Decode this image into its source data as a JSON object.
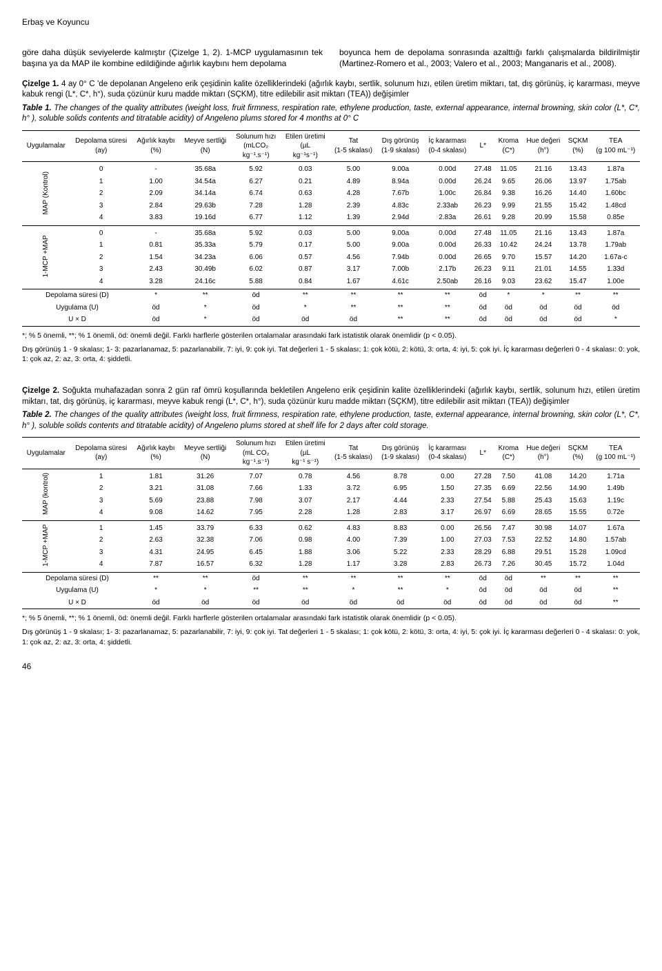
{
  "header_author": "Erbaş ve Koyuncu",
  "page_number": "46",
  "body": {
    "col_left": "göre daha düşük seviyelerde kalmıştır (Çizelge 1, 2). 1-MCP uygulamasının tek başına ya da MAP ile kombine edildiğinde ağırlık kaybını hem depolama",
    "col_right": "boyunca hem de depolama sonrasında azalttığı farklı çalışmalarda bildirilmiştir (Martinez-Romero et al., 2003; Valero et al., 2003; Manganaris et al., 2008)."
  },
  "table1": {
    "caption_tr_label": "Çizelge 1.",
    "caption_tr": " 4 ay 0° C 'de depolanan Angeleno erik çeşidinin kalite özelliklerindeki (ağırlık kaybı, sertlik, solunum hızı, etilen üretim miktarı, tat, dış görünüş, iç kararması, meyve kabuk rengi (L*, C*, h°), suda çözünür kuru madde miktarı (SÇKM), titre edilebilir asit miktarı (TEA)) değişimler",
    "caption_en_label": "Table 1.",
    "caption_en": " The changes of the quality attributes (weight loss, fruit firmness, respiration rate, ethylene production, taste, external appearance, internal browning, skin color (L*, C*, h° ), soluble solids contents and titratable acidity) of Angeleno plums stored for 4 months at 0° C",
    "columns": [
      "Uygulamalar",
      "Depolama süresi (ay)",
      "Ağırlık kaybı (%)",
      "Meyve sertliği (N)",
      "Solunum hızı (mLCO₂ kg⁻¹.s⁻¹)",
      "Etilen üretimi (µL kg⁻¹s⁻¹)",
      "Tat (1-5 skalası)",
      "Dış görünüş (1-9 skalası)",
      "İç kararması (0-4 skalası)",
      "L*",
      "Kroma (C*)",
      "Hue değeri (h°)",
      "SÇKM (%)",
      "TEA (g 100 mL⁻¹)"
    ],
    "groups": [
      {
        "name": "MAP (Kontrol)",
        "rows": [
          [
            "0",
            "-",
            "35.68a",
            "5.92",
            "0.03",
            "5.00",
            "9.00a",
            "0.00d",
            "27.48",
            "11.05",
            "21.16",
            "13.43",
            "1.87a"
          ],
          [
            "1",
            "1.00",
            "34.54a",
            "6.27",
            "0.21",
            "4.89",
            "8.94a",
            "0.00d",
            "26.24",
            "9.65",
            "26.06",
            "13.97",
            "1.75ab"
          ],
          [
            "2",
            "2.09",
            "34.14a",
            "6.74",
            "0.63",
            "4.28",
            "7.67b",
            "1.00c",
            "26.84",
            "9.38",
            "16.26",
            "14.40",
            "1.60bc"
          ],
          [
            "3",
            "2.84",
            "29.63b",
            "7.28",
            "1.28",
            "2.39",
            "4.83c",
            "2.33ab",
            "26.23",
            "9.99",
            "21.55",
            "15.42",
            "1.48cd"
          ],
          [
            "4",
            "3.83",
            "19.16d",
            "6.77",
            "1.12",
            "1.39",
            "2.94d",
            "2.83a",
            "26.61",
            "9.28",
            "20.99",
            "15.58",
            "0.85e"
          ]
        ]
      },
      {
        "name": "1-MCP +MAP",
        "rows": [
          [
            "0",
            "-",
            "35.68a",
            "5.92",
            "0.03",
            "5.00",
            "9.00a",
            "0.00d",
            "27.48",
            "11.05",
            "21.16",
            "13.43",
            "1.87a"
          ],
          [
            "1",
            "0.81",
            "35.33a",
            "5.79",
            "0.17",
            "5.00",
            "9.00a",
            "0.00d",
            "26.33",
            "10.42",
            "24.24",
            "13.78",
            "1.79ab"
          ],
          [
            "2",
            "1.54",
            "34.23a",
            "6.06",
            "0.57",
            "4.56",
            "7.94b",
            "0.00d",
            "26.65",
            "9.70",
            "15.57",
            "14.20",
            "1.67a-c"
          ],
          [
            "3",
            "2.43",
            "30.49b",
            "6.02",
            "0.87",
            "3.17",
            "7.00b",
            "2.17b",
            "26.23",
            "9.11",
            "21.01",
            "14.55",
            "1.33d"
          ],
          [
            "4",
            "3.28",
            "24.16c",
            "5.88",
            "0.84",
            "1.67",
            "4.61c",
            "2.50ab",
            "26.16",
            "9.03",
            "23.62",
            "15.47",
            "1.00e"
          ]
        ]
      }
    ],
    "stats": [
      [
        "Depolama süresi (D)",
        "*",
        "**",
        "öd",
        "**",
        "**",
        "**",
        "**",
        "öd",
        "*",
        "*",
        "**",
        "**"
      ],
      [
        "Uygulama (U)",
        "öd",
        "*",
        "öd",
        "*",
        "**",
        "**",
        "**",
        "öd",
        "öd",
        "öd",
        "öd",
        "öd"
      ],
      [
        "U × D",
        "öd",
        "*",
        "öd",
        "öd",
        "öd",
        "**",
        "**",
        "öd",
        "öd",
        "öd",
        "öd",
        "*"
      ]
    ],
    "footnote1": "*; % 5 önemli, **; % 1 önemli, öd: önemli değil. Farklı harflerle gösterilen ortalamalar arasındaki fark istatistik olarak önemlidir (p < 0.05).",
    "footnote2": "Dış görünüş 1 - 9 skalası; 1- 3: pazarlanamaz, 5: pazarlanabilir, 7: iyi, 9: çok iyi. Tat değerleri 1 - 5 skalası; 1: çok kötü, 2: kötü, 3: orta, 4: iyi, 5: çok iyi. İç kararması değerleri 0 - 4 skalası: 0: yok, 1: çok az, 2: az, 3: orta, 4: şiddetli."
  },
  "table2": {
    "caption_tr_label": "Çizelge 2.",
    "caption_tr": " Soğukta muhafazadan sonra 2 gün raf ömrü koşullarında bekletilen Angeleno erik çeşidinin kalite özelliklerindeki (ağırlık kaybı, sertlik, solunum hızı, etilen üretim miktarı, tat, dış görünüş, iç kararması, meyve kabuk rengi (L*, C*, h°), suda çözünür kuru madde miktarı (SÇKM), titre edilebilir asit miktarı (TEA)) değişimler",
    "caption_en_label": "Table 2.",
    "caption_en": " The changes of the quality attributes (weight loss, fruit firmness, respiration rate, ethylene production, taste, external appearance, internal browning, skin color (L*, C*, h° ), soluble solids contents and titratable acidity) of Angeleno plums stored at shelf life for 2 days after cold storage.",
    "columns": [
      "Uygulamalar",
      "Depolama süresi (ay)",
      "Ağırlık kaybı (%)",
      "Meyve sertliği (N)",
      "Solunum hızı (mL CO₂ kg⁻¹.s⁻¹)",
      "Etilen üretimi (µL kg⁻¹ s⁻¹)",
      "Tat (1-5 skalası)",
      "Dış görünüş (1-9 skalası)",
      "İç kararması (0-4 skalası)",
      "L*",
      "Kroma (C*)",
      "Hue değeri (h°)",
      "SÇKM (%)",
      "TEA (g 100 mL⁻¹)"
    ],
    "groups": [
      {
        "name": "MAP (kontrol)",
        "rows": [
          [
            "1",
            "1.81",
            "31.26",
            "7.07",
            "0.78",
            "4.56",
            "8.78",
            "0.00",
            "27.28",
            "7.50",
            "41.08",
            "14.20",
            "1.71a"
          ],
          [
            "2",
            "3.21",
            "31.08",
            "7.66",
            "1.33",
            "3.72",
            "6.95",
            "1.50",
            "27.35",
            "6.69",
            "22.56",
            "14.90",
            "1.49b"
          ],
          [
            "3",
            "5.69",
            "23.88",
            "7.98",
            "3.07",
            "2.17",
            "4.44",
            "2.33",
            "27.54",
            "5.88",
            "25.43",
            "15.63",
            "1.19c"
          ],
          [
            "4",
            "9.08",
            "14.62",
            "7.95",
            "2.28",
            "1.28",
            "2.83",
            "3.17",
            "26.97",
            "6.69",
            "28.65",
            "15.55",
            "0.72e"
          ]
        ]
      },
      {
        "name": "1-MCP +MAP",
        "rows": [
          [
            "1",
            "1.45",
            "33.79",
            "6.33",
            "0.62",
            "4.83",
            "8.83",
            "0.00",
            "26.56",
            "7.47",
            "30.98",
            "14.07",
            "1.67a"
          ],
          [
            "2",
            "2.63",
            "32.38",
            "7.06",
            "0.98",
            "4.00",
            "7.39",
            "1.00",
            "27.03",
            "7.53",
            "22.52",
            "14.80",
            "1.57ab"
          ],
          [
            "3",
            "4.31",
            "24.95",
            "6.45",
            "1.88",
            "3.06",
            "5.22",
            "2.33",
            "28.29",
            "6.88",
            "29.51",
            "15.28",
            "1.09cd"
          ],
          [
            "4",
            "7.87",
            "16.57",
            "6.32",
            "1.28",
            "1.17",
            "3.28",
            "2.83",
            "26.73",
            "7.26",
            "30.45",
            "15.72",
            "1.04d"
          ]
        ]
      }
    ],
    "stats": [
      [
        "Depolama süresi (D)",
        "**",
        "**",
        "öd",
        "**",
        "**",
        "**",
        "**",
        "öd",
        "öd",
        "**",
        "**",
        "**"
      ],
      [
        "Uygulama (U)",
        "*",
        "*",
        "**",
        "**",
        "*",
        "**",
        "*",
        "öd",
        "öd",
        "öd",
        "öd",
        "**"
      ],
      [
        "U × D",
        "öd",
        "öd",
        "öd",
        "öd",
        "öd",
        "öd",
        "öd",
        "öd",
        "öd",
        "öd",
        "öd",
        "**"
      ]
    ],
    "footnote1": "*; % 5 önemli, **; % 1 önemli, öd: önemli değil. Farklı harflerle gösterilen ortalamalar arasındaki fark istatistik olarak önemlidir (p < 0.05).",
    "footnote2": "Dış görünüş 1 - 9 skalası; 1- 3: pazarlanamaz, 5: pazarlanabilir, 7: iyi, 9: çok iyi. Tat değerleri 1 - 5 skalası; 1: çok kötü, 2: kötü, 3: orta, 4: iyi, 5: çok iyi. İç kararması değerleri 0 - 4 skalası: 0: yok, 1: çok az, 2: az, 3: orta, 4: şiddetli."
  }
}
